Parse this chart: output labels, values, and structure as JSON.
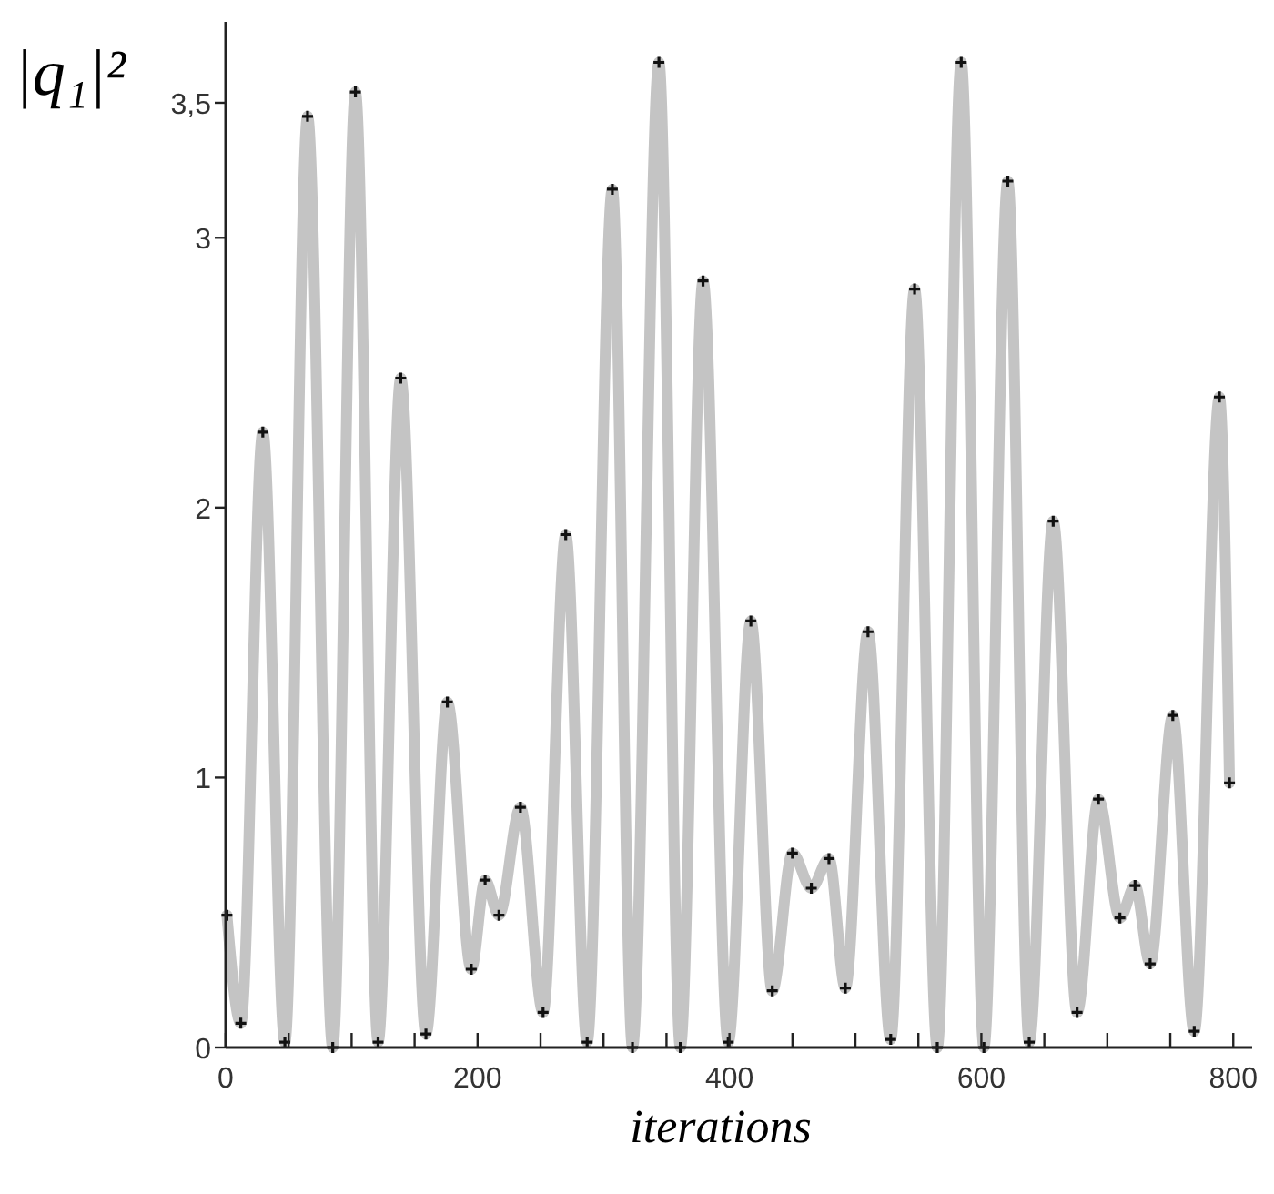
{
  "chart_data": {
    "type": "line",
    "xlabel": "iterations",
    "ylabel": "|q₁|²",
    "marker": "cross",
    "line_style": "solid",
    "grid": false,
    "xlim": [
      0,
      815
    ],
    "ylim": [
      0,
      3.8
    ],
    "xticks": [
      0,
      {
        "value": 50,
        "label": null
      },
      {
        "value": 100,
        "label": null
      },
      {
        "value": 150,
        "label": null
      },
      200,
      {
        "value": 250,
        "label": null
      },
      {
        "value": 300,
        "label": null
      },
      {
        "value": 350,
        "label": null
      },
      400,
      {
        "value": 450,
        "label": null
      },
      {
        "value": 500,
        "label": null
      },
      {
        "value": 550,
        "label": null
      },
      600,
      {
        "value": 650,
        "label": null
      },
      {
        "value": 700,
        "label": null
      },
      {
        "value": 750,
        "label": null
      },
      800
    ],
    "yticks": [
      0,
      1,
      2,
      3,
      {
        "value": 3.5,
        "label": "3,5"
      }
    ],
    "series": [
      {
        "color": "#c4c4c4",
        "x": [
          1,
          12,
          29.5,
          47,
          65,
          85,
          103,
          121,
          139,
          159,
          176,
          195,
          206,
          217,
          234,
          252,
          270,
          287,
          307,
          323,
          344,
          361,
          379,
          399,
          417,
          434,
          450,
          465,
          479,
          492,
          510,
          528,
          547,
          565,
          584,
          602,
          621,
          638,
          657,
          676,
          693,
          710,
          722,
          734,
          752,
          769,
          789,
          797
        ],
        "values": [
          0.49,
          0.09,
          2.28,
          0.02,
          3.45,
          0.0,
          3.54,
          0.02,
          2.48,
          0.05,
          1.28,
          0.29,
          0.62,
          0.49,
          0.89,
          0.13,
          1.9,
          0.02,
          3.18,
          0.0,
          3.65,
          0.0,
          2.84,
          0.02,
          1.58,
          0.21,
          0.72,
          0.59,
          0.7,
          0.22,
          1.54,
          0.03,
          2.81,
          0.0,
          3.65,
          0.0,
          3.21,
          0.02,
          1.95,
          0.13,
          0.92,
          0.48,
          0.6,
          0.31,
          1.23,
          0.06,
          2.41,
          0.98
        ]
      }
    ]
  }
}
